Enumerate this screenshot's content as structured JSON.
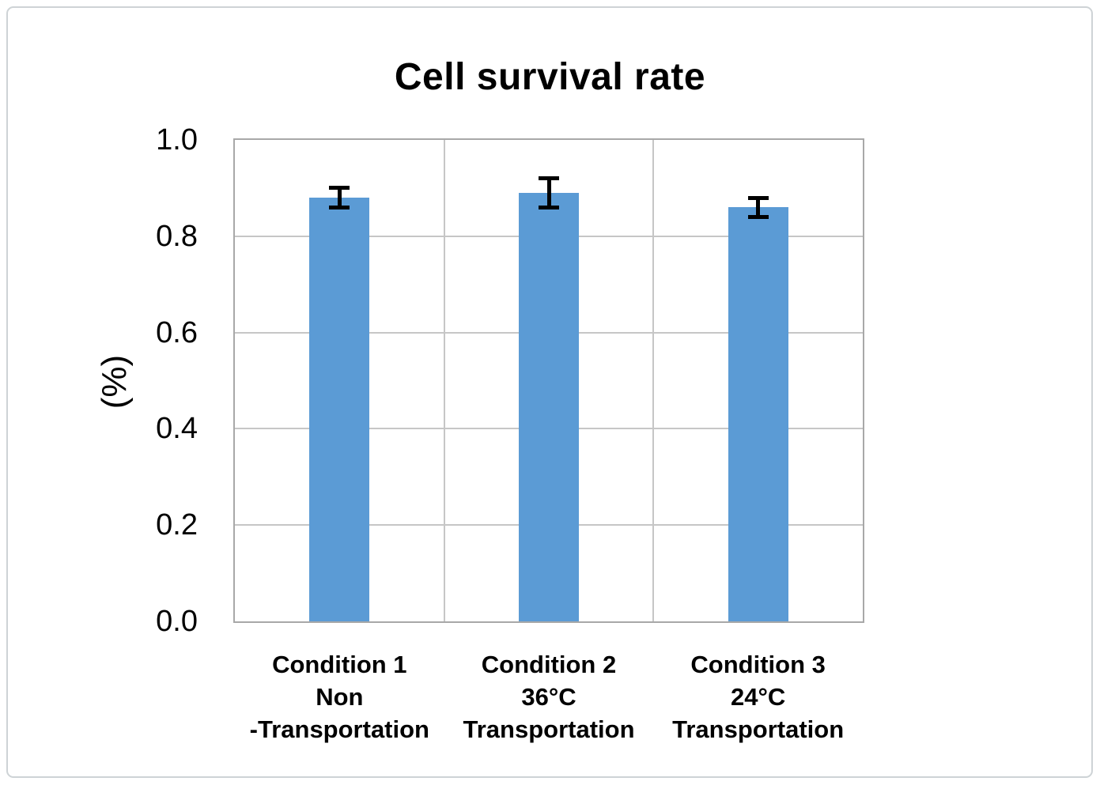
{
  "figure": {
    "border_color": "#ced3d6",
    "background": "#ffffff"
  },
  "chart_data": {
    "type": "bar",
    "title": "Cell survival rate",
    "ylabel": "(%)",
    "xlabel": "",
    "ylim": [
      0.0,
      1.0
    ],
    "yticks": [
      {
        "label": "1.0",
        "value": 1.0
      },
      {
        "label": "0.8",
        "value": 0.8
      },
      {
        "label": "0.6",
        "value": 0.6
      },
      {
        "label": "0.4",
        "value": 0.4
      },
      {
        "label": "0.2",
        "value": 0.2
      },
      {
        "label": "0.0",
        "value": 0.0
      }
    ],
    "categories": [
      "Condition 1\nNon\n-Transportation",
      "Condition 2\n36°C\nTransportation",
      "Condition 3\n24°C\nTransportation"
    ],
    "values": [
      0.88,
      0.89,
      0.86
    ],
    "error_bars": [
      0.02,
      0.03,
      0.02
    ],
    "bar_color": "#5b9bd5",
    "error_color": "#000000",
    "grid": true,
    "gridline_color": "#c6c6c6",
    "plot_border_color": "#a8a8a8",
    "legend": "none"
  }
}
